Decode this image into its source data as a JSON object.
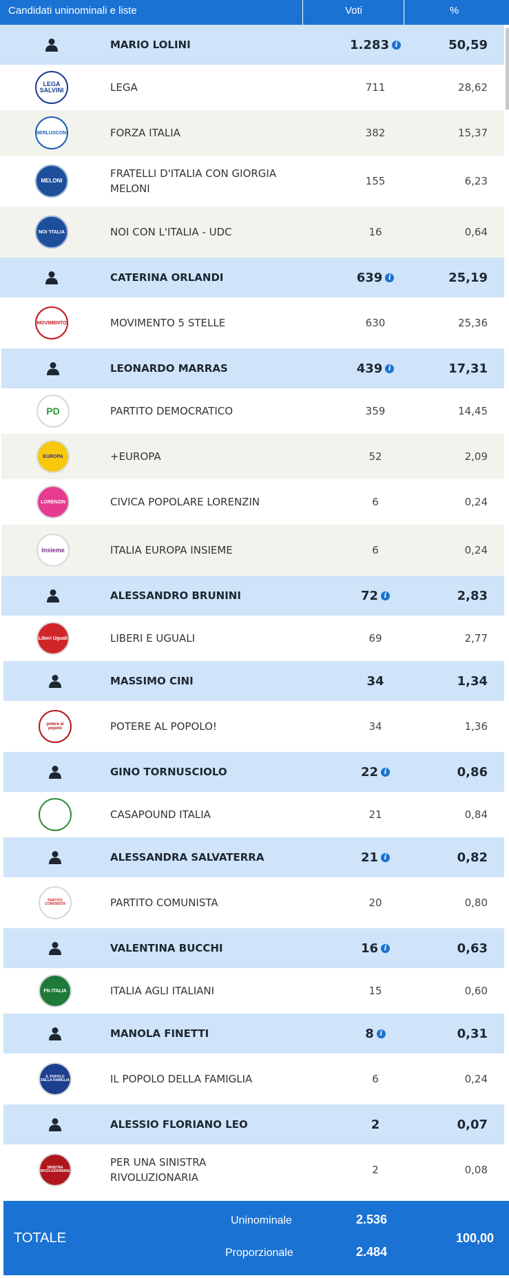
{
  "header": {
    "col1": "Candidati uninominali e liste",
    "col2": "Voti",
    "col3": "%"
  },
  "colors": {
    "header_blue": "#1a72d3",
    "candidate_row": "#cfe4f8",
    "list_row_alt": "#f3f3ee"
  },
  "rows": [
    {
      "type": "candidate",
      "icon": "person-icon",
      "name": "MARIO LOLINI",
      "votes": "1.283",
      "info": true,
      "pct": "50,59"
    },
    {
      "type": "list",
      "icon": "lega-logo",
      "name": "LEGA",
      "votes": "711",
      "pct": "28,62",
      "logo_text": "LEGA SALVINI"
    },
    {
      "type": "list",
      "icon": "forza-italia-logo",
      "name": "FORZA ITALIA",
      "votes": "382",
      "pct": "15,37",
      "logo_text": "BERLUSCONI"
    },
    {
      "type": "list",
      "icon": "fratelli-italia-logo",
      "name": "FRATELLI D'ITALIA CON GIORGIA MELONI",
      "votes": "155",
      "pct": "6,23",
      "logo_text": "MELONI"
    },
    {
      "type": "list",
      "icon": "noi-con-italia-logo",
      "name": "NOI CON L'ITALIA - UDC",
      "votes": "16",
      "pct": "0,64",
      "logo_text": "NOI 'ITALIA"
    },
    {
      "type": "candidate",
      "icon": "person-icon",
      "name": "CATERINA ORLANDI",
      "votes": "639",
      "info": true,
      "pct": "25,19"
    },
    {
      "type": "list",
      "icon": "movimento-5-stelle-logo",
      "name": "MOVIMENTO 5 STELLE",
      "votes": "630",
      "pct": "25,36",
      "logo_text": "MOVIMENTO"
    },
    {
      "type": "candidate",
      "icon": "person-icon",
      "name": "LEONARDO MARRAS",
      "votes": "439",
      "info": true,
      "pct": "17,31"
    },
    {
      "type": "list",
      "icon": "partito-democratico-logo",
      "name": "PARTITO DEMOCRATICO",
      "votes": "359",
      "pct": "14,45",
      "logo_text": "PD"
    },
    {
      "type": "list",
      "icon": "piu-europa-logo",
      "name": "+EUROPA",
      "votes": "52",
      "pct": "2,09",
      "logo_text": "EUROPA"
    },
    {
      "type": "list",
      "icon": "civica-popolare-logo",
      "name": "CIVICA POPOLARE LORENZIN",
      "votes": "6",
      "pct": "0,24",
      "logo_text": "LORENZIN"
    },
    {
      "type": "list",
      "icon": "italia-europa-insieme-logo",
      "name": "ITALIA EUROPA INSIEME",
      "votes": "6",
      "pct": "0,24",
      "logo_text": "insieme"
    },
    {
      "type": "candidate",
      "icon": "person-icon",
      "name": "ALESSANDRO BRUNINI",
      "votes": "72",
      "info": true,
      "pct": "2,83"
    },
    {
      "type": "list",
      "icon": "liberi-uguali-logo",
      "name": "LIBERI E UGUALI",
      "votes": "69",
      "pct": "2,77",
      "logo_text": "Liberi Uguali"
    },
    {
      "type": "candidate",
      "icon": "person-icon",
      "name": "MASSIMO CINI",
      "votes": "34",
      "info": false,
      "pct": "1,34"
    },
    {
      "type": "list",
      "icon": "potere-al-popolo-logo",
      "name": "POTERE AL POPOLO!",
      "votes": "34",
      "pct": "1,36",
      "logo_text": "potere al popolo"
    },
    {
      "type": "candidate",
      "icon": "person-icon",
      "name": "GINO TORNUSCIOLO",
      "votes": "22",
      "info": true,
      "pct": "0,86"
    },
    {
      "type": "list",
      "icon": "casapound-logo",
      "name": "CASAPOUND ITALIA",
      "votes": "21",
      "pct": "0,84",
      "logo_text": ""
    },
    {
      "type": "candidate",
      "icon": "person-icon",
      "name": "ALESSANDRA SALVATERRA",
      "votes": "21",
      "info": true,
      "pct": "0,82"
    },
    {
      "type": "list",
      "icon": "partito-comunista-logo",
      "name": "PARTITO COMUNISTA",
      "votes": "20",
      "pct": "0,80",
      "logo_text": "PARTITO COMUNISTA"
    },
    {
      "type": "candidate",
      "icon": "person-icon",
      "name": "VALENTINA BUCCHI",
      "votes": "16",
      "info": true,
      "pct": "0,63"
    },
    {
      "type": "list",
      "icon": "italia-agli-italiani-logo",
      "name": "ITALIA AGLI ITALIANI",
      "votes": "15",
      "pct": "0,60",
      "logo_text": "FN ITALIA"
    },
    {
      "type": "candidate",
      "icon": "person-icon",
      "name": "MANOLA FINETTI",
      "votes": "8",
      "info": true,
      "pct": "0,31"
    },
    {
      "type": "list",
      "icon": "popolo-della-famiglia-logo",
      "name": "IL POPOLO DELLA FAMIGLIA",
      "votes": "6",
      "pct": "0,24",
      "logo_text": "IL POPOLO DELLA FAMIGLIA"
    },
    {
      "type": "candidate",
      "icon": "person-icon",
      "name": "ALESSIO FLORIANO LEO",
      "votes": "2",
      "info": false,
      "pct": "0,07"
    },
    {
      "type": "list",
      "icon": "sinistra-rivoluzionaria-logo",
      "name": "PER UNA SINISTRA RIVOLUZIONARIA",
      "votes": "2",
      "pct": "0,08",
      "logo_text": "SINISTRA RIVOLUZIONARIA"
    }
  ],
  "total": {
    "label": "TOTALE",
    "uninominale_label": "Uninominale",
    "uninominale_votes": "2.536",
    "proporzionale_label": "Proporzionale",
    "proporzionale_votes": "2.484",
    "pct": "100,00"
  }
}
